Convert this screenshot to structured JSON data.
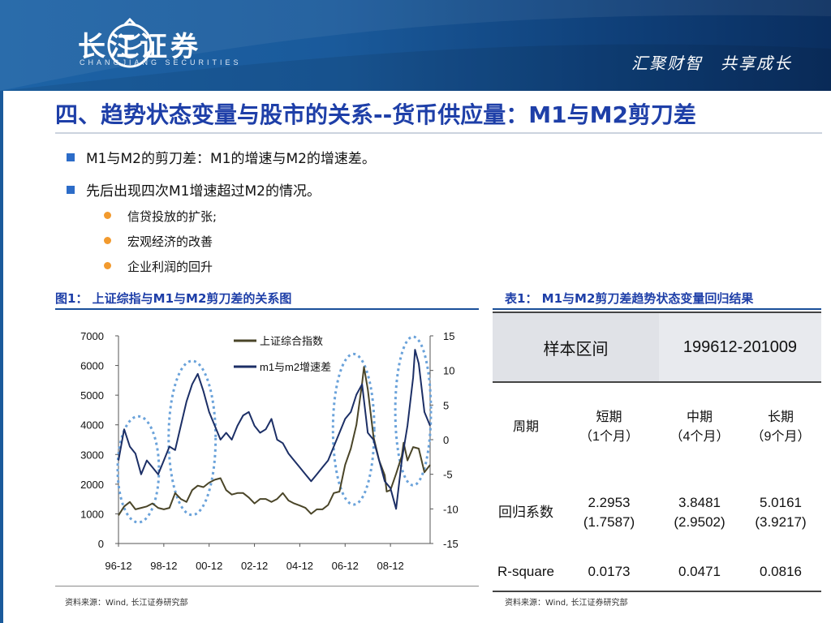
{
  "header": {
    "company_cn": "长江证券",
    "company_en": "CHANGJIANG SECURITIES",
    "slogan": "汇聚财智　共享成长"
  },
  "title": "四、趋势状态变量与股市的关系--货币供应量：M1与M2剪刀差",
  "bullets": [
    {
      "level": 1,
      "text": "M1与M2的剪刀差：M1的增速与M2的增速差。"
    },
    {
      "level": 1,
      "text": "先后出现四次M1增速超过M2的情况。"
    },
    {
      "level": 2,
      "text": "信贷投放的扩张;"
    },
    {
      "level": 2,
      "text": "宏观经济的改善"
    },
    {
      "level": 2,
      "text": "企业利润的回升"
    }
  ],
  "figure": {
    "caption": "图1： 上证综指与M1与M2剪刀差的关系图",
    "source": "资料来源：Wind, 长江证券研究部"
  },
  "table": {
    "caption": "表1： M1与M2剪刀差趋势状态变量回归结果",
    "source": "资料来源：Wind, 长江证券研究部",
    "header": [
      "样本区间",
      "199612-201009"
    ],
    "period_label": "周期",
    "periods": [
      {
        "name": "短期",
        "sub": "（1个月）"
      },
      {
        "name": "中期",
        "sub": "（4个月）"
      },
      {
        "name": "长期",
        "sub": "（9个月）"
      }
    ],
    "coef_label": "回归系数",
    "coefs": [
      {
        "value": "2.2953",
        "se": "(1.7587)"
      },
      {
        "value": "3.8481",
        "se": "(2.9502)"
      },
      {
        "value": "5.0161",
        "se": "(3.9217)"
      }
    ],
    "r2_label": "R-square",
    "r2": [
      "0.0173",
      "0.0471",
      "0.0816"
    ]
  },
  "colors": {
    "title": "#1e3fa8",
    "header_bg": "#1a5a9b",
    "series_index": "#4a4528",
    "series_spread": "#1c2f66",
    "highlight_ellipse": "#6aa2da",
    "bullet_square": "#2c6cc8",
    "bullet_dot": "#f29a2e"
  },
  "chart_data": {
    "type": "line",
    "title": "",
    "x_tick_labels": [
      "96-12",
      "98-12",
      "00-12",
      "02-12",
      "04-12",
      "06-12",
      "08-12"
    ],
    "xlim": [
      "1996-12",
      "2010-09"
    ],
    "left_axis": {
      "ylim": [
        0,
        7000
      ],
      "ticks": [
        0,
        1000,
        2000,
        3000,
        4000,
        5000,
        6000,
        7000
      ]
    },
    "right_axis": {
      "ylim": [
        -15,
        15
      ],
      "ticks": [
        -15,
        -10,
        -5,
        0,
        5,
        10,
        15
      ]
    },
    "legend_position": "top-center",
    "series": [
      {
        "name": "上证综合指数",
        "axis": "left",
        "x": [
          "1996-12",
          "1997-03",
          "1997-06",
          "1997-09",
          "1997-12",
          "1998-03",
          "1998-06",
          "1998-09",
          "1998-12",
          "1999-03",
          "1999-06",
          "1999-09",
          "1999-12",
          "2000-03",
          "2000-06",
          "2000-09",
          "2000-12",
          "2001-03",
          "2001-06",
          "2001-09",
          "2001-12",
          "2002-03",
          "2002-06",
          "2002-09",
          "2002-12",
          "2003-03",
          "2003-06",
          "2003-09",
          "2003-12",
          "2004-03",
          "2004-06",
          "2004-09",
          "2004-12",
          "2005-03",
          "2005-06",
          "2005-09",
          "2005-12",
          "2006-03",
          "2006-06",
          "2006-09",
          "2006-12",
          "2007-03",
          "2007-06",
          "2007-09",
          "2007-10",
          "2007-12",
          "2008-03",
          "2008-06",
          "2008-09",
          "2008-10",
          "2008-12",
          "2009-03",
          "2009-06",
          "2009-07",
          "2009-09",
          "2009-12",
          "2010-03",
          "2010-06",
          "2010-09"
        ],
        "values": [
          950,
          1250,
          1400,
          1150,
          1200,
          1250,
          1350,
          1200,
          1150,
          1200,
          1700,
          1500,
          1400,
          1800,
          1950,
          1900,
          2050,
          2150,
          2200,
          1800,
          1650,
          1700,
          1700,
          1550,
          1350,
          1500,
          1500,
          1400,
          1500,
          1700,
          1450,
          1350,
          1280,
          1200,
          1000,
          1150,
          1150,
          1300,
          1700,
          1750,
          2650,
          3200,
          4000,
          5400,
          5950,
          5200,
          3600,
          2800,
          2300,
          1750,
          1800,
          2350,
          2950,
          3400,
          2800,
          3250,
          3200,
          2400,
          2650
        ]
      },
      {
        "name": "m1与m2增速差",
        "axis": "right",
        "x": [
          "1996-12",
          "1997-03",
          "1997-06",
          "1997-09",
          "1997-12",
          "1998-03",
          "1998-06",
          "1998-09",
          "1998-12",
          "1999-03",
          "1999-06",
          "1999-09",
          "1999-12",
          "2000-03",
          "2000-06",
          "2000-09",
          "2000-12",
          "2001-03",
          "2001-06",
          "2001-09",
          "2001-12",
          "2002-03",
          "2002-06",
          "2002-09",
          "2002-12",
          "2003-03",
          "2003-06",
          "2003-09",
          "2003-12",
          "2004-03",
          "2004-06",
          "2004-09",
          "2004-12",
          "2005-03",
          "2005-06",
          "2005-09",
          "2005-12",
          "2006-03",
          "2006-06",
          "2006-09",
          "2006-12",
          "2007-03",
          "2007-06",
          "2007-09",
          "2007-12",
          "2008-03",
          "2008-06",
          "2008-09",
          "2008-12",
          "2009-03",
          "2009-06",
          "2009-09",
          "2009-12",
          "2010-01",
          "2010-03",
          "2010-06",
          "2010-09"
        ],
        "values": [
          -3,
          1.5,
          -1,
          -2,
          -5,
          -3,
          -4,
          -5,
          -3,
          -1,
          -1.5,
          2,
          5.5,
          8,
          9.5,
          7,
          4,
          2,
          0,
          1,
          0,
          2,
          3.5,
          4,
          2,
          1,
          1.5,
          3,
          0,
          -0.5,
          -2,
          -3,
          -4,
          -5,
          -6,
          -5,
          -4,
          -3,
          -1,
          1,
          3,
          4,
          6.5,
          8,
          1,
          0,
          -3,
          -6,
          -7,
          -10,
          -3,
          2,
          9,
          13,
          11,
          4,
          2
        ]
      }
    ],
    "highlighted_periods": [
      {
        "from": "1997-03",
        "to": "1998-06"
      },
      {
        "from": "1999-06",
        "to": "2000-12"
      },
      {
        "from": "2006-09",
        "to": "2007-12"
      },
      {
        "from": "2009-06",
        "to": "2010-06"
      }
    ]
  }
}
